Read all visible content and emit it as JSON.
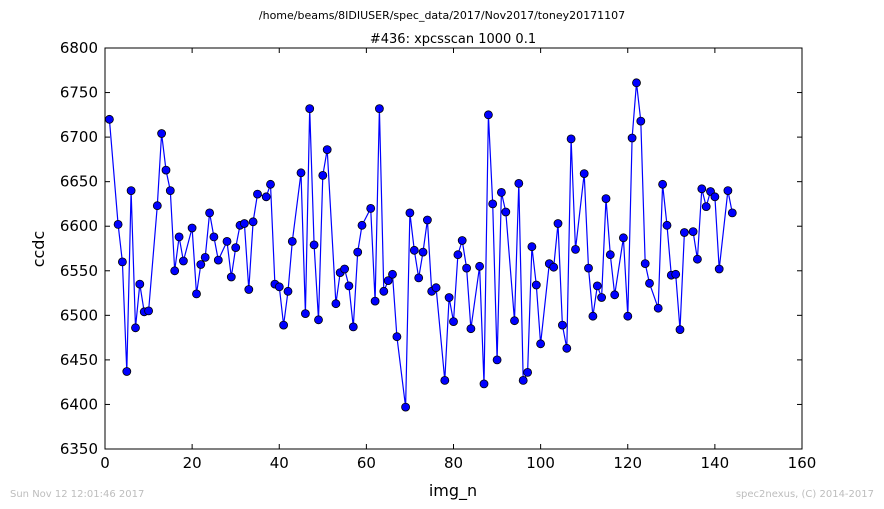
{
  "footer": {
    "left": "Sun Nov 12 12:01:46 2017",
    "right": "spec2nexus, (C) 2014-2017"
  },
  "colors": {
    "series": "#0000ff",
    "axis": "#000000",
    "footer": "#bdbdbd"
  },
  "chart_data": {
    "type": "line",
    "supertitle": "/home/beams/8IDIUSER/spec_data/2017/Nov2017/toney20171107",
    "title": "#436: xpcsscan 1000 0.1",
    "xlabel": "img_n",
    "ylabel": "ccdc",
    "xlim": [
      0,
      160
    ],
    "ylim": [
      6350,
      6800
    ],
    "xticks": [
      0,
      20,
      40,
      60,
      80,
      100,
      120,
      140,
      160
    ],
    "yticks": [
      6350,
      6400,
      6450,
      6500,
      6550,
      6600,
      6650,
      6700,
      6750,
      6800
    ],
    "grid": false,
    "marker": "circle",
    "series": [
      {
        "x": [
          1,
          3,
          4,
          5,
          6,
          7,
          8,
          9,
          10,
          12,
          13,
          14,
          15,
          16,
          17,
          18,
          20,
          21,
          22,
          23,
          24,
          25,
          26,
          28,
          29,
          30,
          31,
          32,
          33,
          34,
          35,
          37,
          38,
          39,
          40,
          41,
          42,
          43,
          45,
          46,
          47,
          48,
          49,
          50,
          51,
          53,
          54,
          55,
          56,
          57,
          58,
          59,
          61,
          62,
          63,
          64,
          65,
          66,
          67,
          69,
          70,
          71,
          72,
          73,
          74,
          75,
          76,
          78,
          79,
          80,
          81,
          82,
          83,
          84,
          86,
          87,
          88,
          89,
          90,
          91,
          92,
          94,
          95,
          96,
          97,
          98,
          99,
          100,
          102,
          103,
          104,
          105,
          106,
          107,
          108,
          110,
          111,
          112,
          113,
          114,
          115,
          116,
          117,
          119,
          120,
          121,
          122,
          123,
          124,
          125,
          127,
          128,
          129,
          130,
          131,
          132,
          133,
          135,
          136,
          137,
          138,
          139,
          140,
          141,
          143,
          144
        ],
        "y": [
          6720,
          6602,
          6560,
          6437,
          6640,
          6486,
          6535,
          6504,
          6505,
          6623,
          6704,
          6663,
          6640,
          6550,
          6588,
          6561,
          6598,
          6524,
          6557,
          6565,
          6615,
          6588,
          6562,
          6583,
          6543,
          6576,
          6601,
          6603,
          6529,
          6605,
          6636,
          6633,
          6647,
          6535,
          6532,
          6489,
          6527,
          6583,
          6660,
          6502,
          6732,
          6579,
          6495,
          6657,
          6686,
          6513,
          6548,
          6552,
          6533,
          6487,
          6571,
          6601,
          6620,
          6516,
          6732,
          6527,
          6539,
          6546,
          6476,
          6397,
          6615,
          6573,
          6542,
          6571,
          6607,
          6527,
          6531,
          6427,
          6520,
          6493,
          6568,
          6584,
          6553,
          6485,
          6555,
          6423,
          6725,
          6625,
          6450,
          6638,
          6616,
          6494,
          6648,
          6427,
          6436,
          6577,
          6534,
          6468,
          6558,
          6554,
          6603,
          6489,
          6463,
          6698,
          6574,
          6659,
          6553,
          6499,
          6533,
          6520,
          6631,
          6568,
          6523,
          6587,
          6499,
          6699,
          6761,
          6718,
          6558,
          6536,
          6508,
          6647,
          6601,
          6545,
          6546,
          6484,
          6593,
          6594,
          6563,
          6642,
          6622,
          6639,
          6633,
          6552,
          6640,
          6615
        ]
      }
    ]
  }
}
